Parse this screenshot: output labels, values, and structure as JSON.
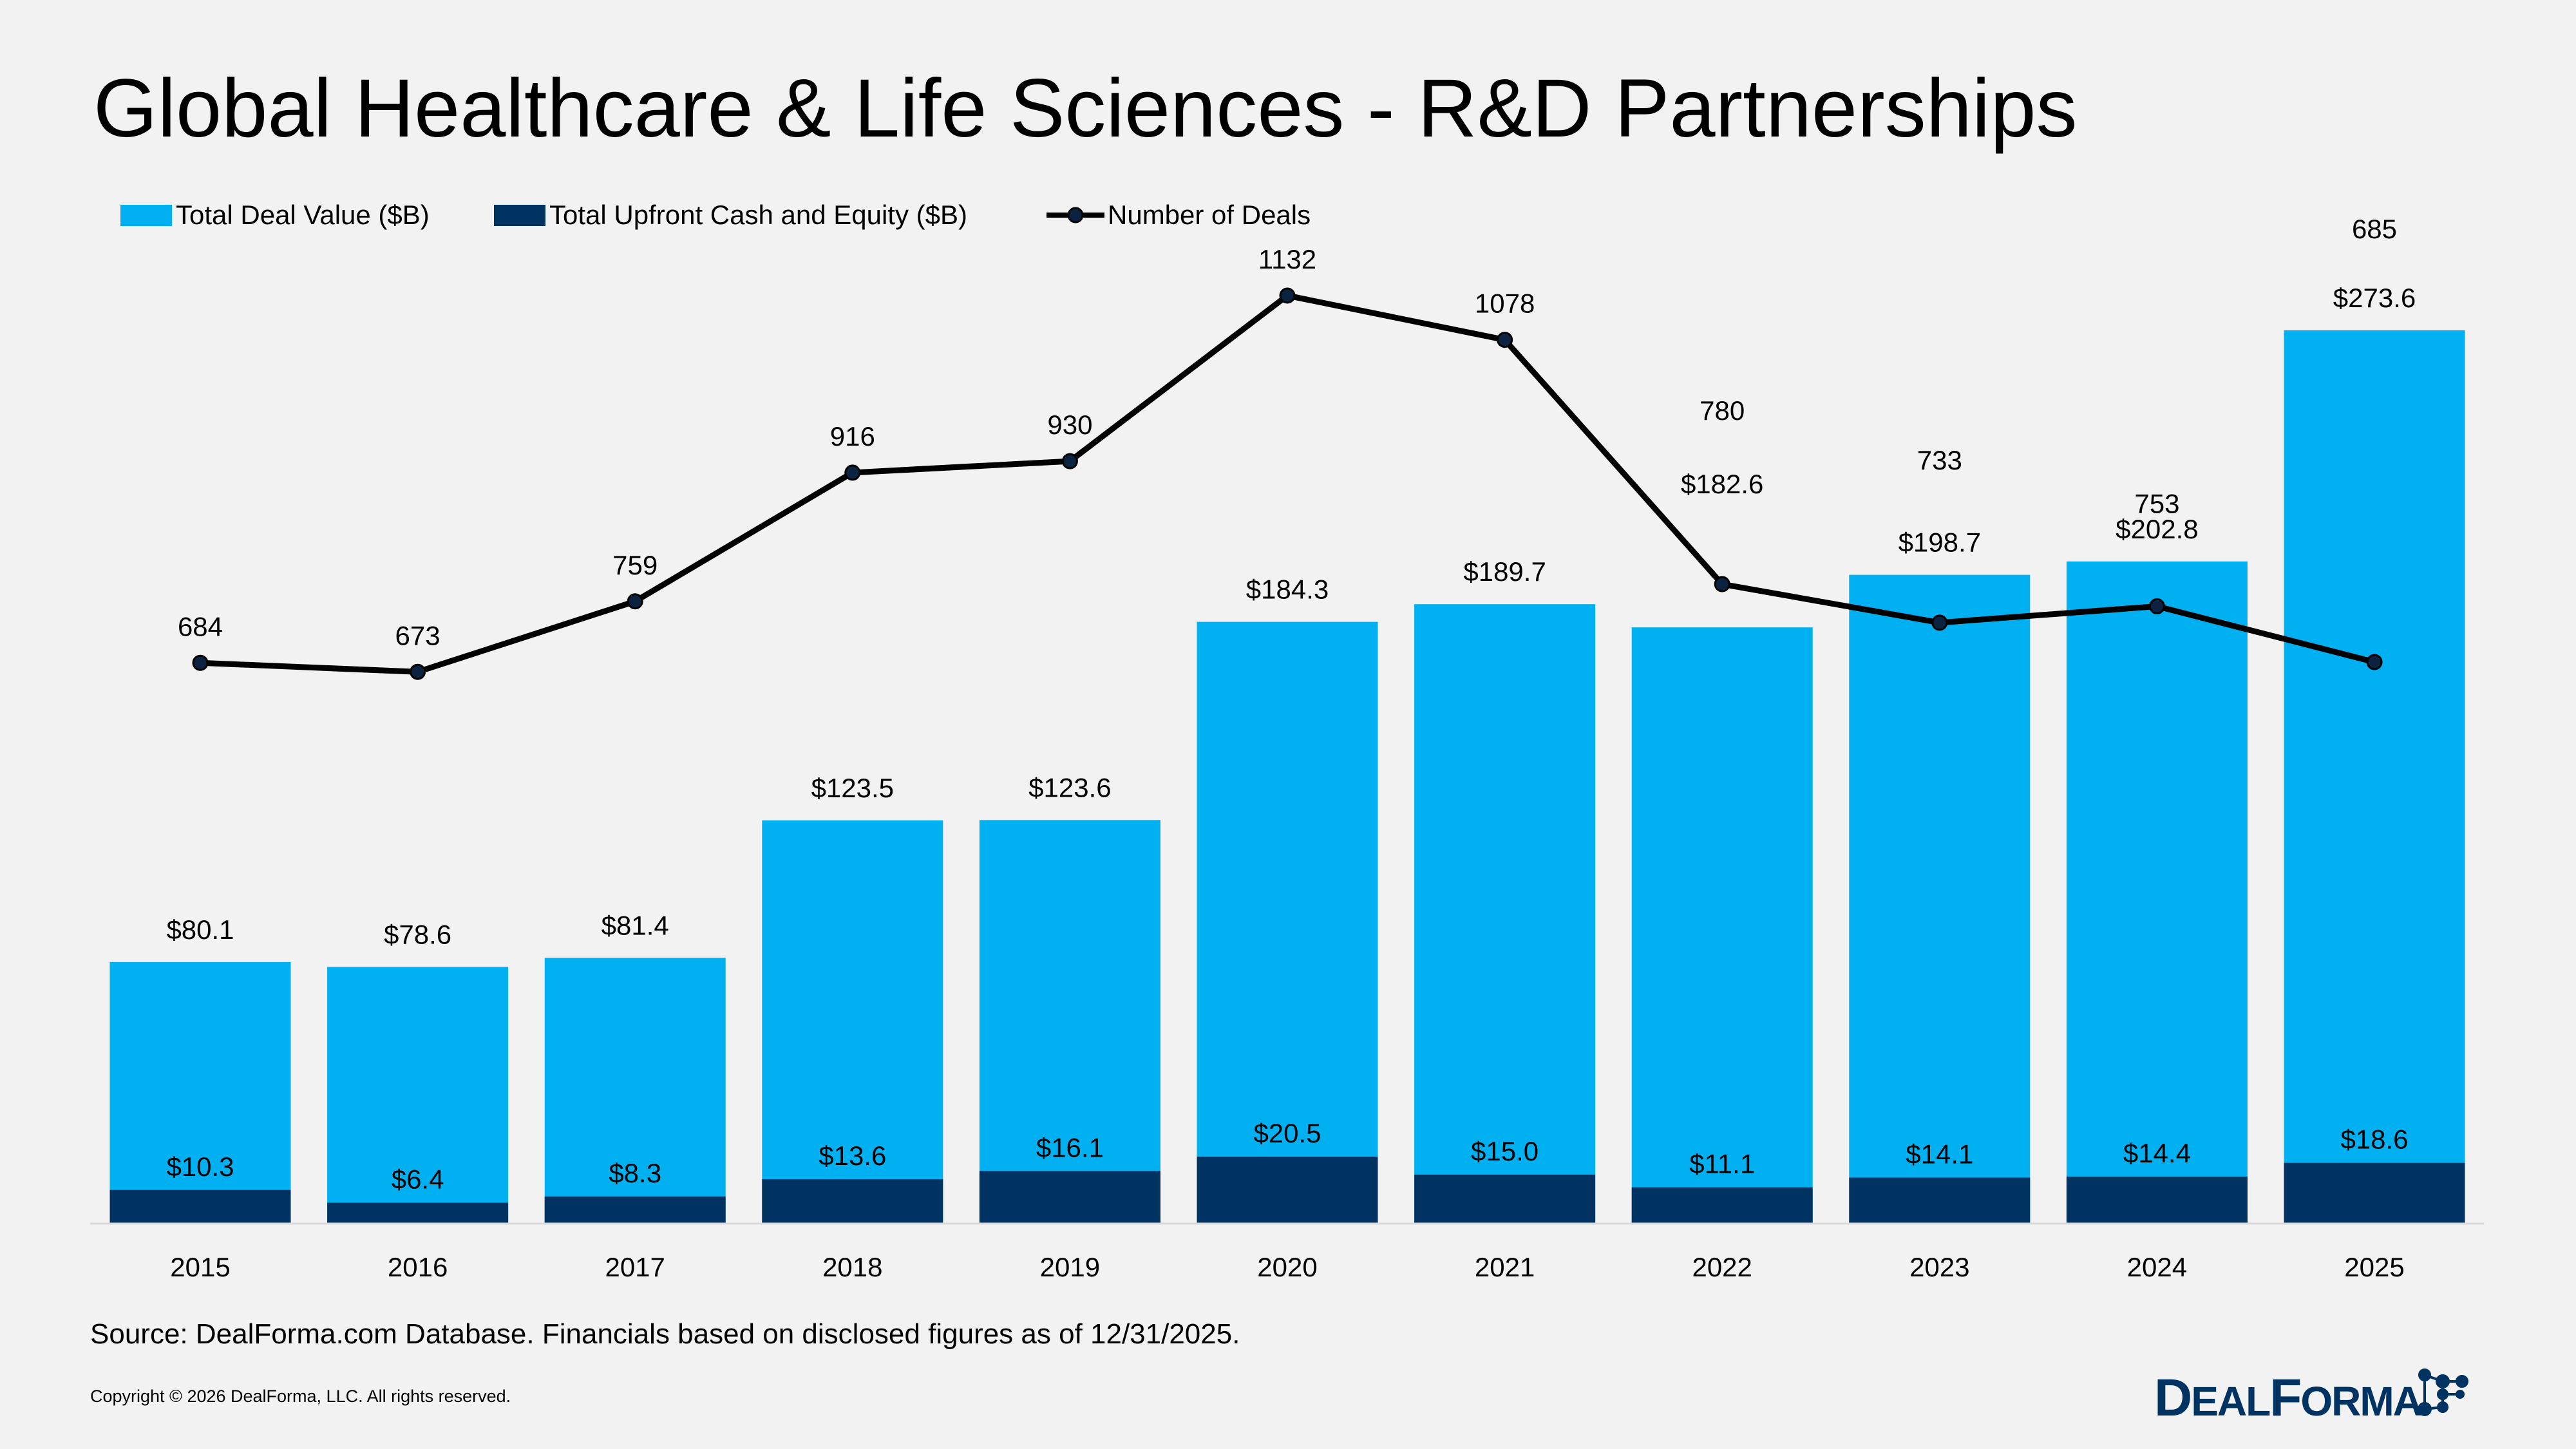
{
  "chart_data": {
    "type": "bar",
    "title": "Global Healthcare & Life Sciences - R&D Partnerships",
    "categories": [
      "2015",
      "2016",
      "2017",
      "2018",
      "2019",
      "2020",
      "2021",
      "2022",
      "2023",
      "2024",
      "2025"
    ],
    "series": [
      {
        "name": "Total Deal Value ($B)",
        "kind": "bar",
        "color": "#00b0f0",
        "values": [
          80.1,
          78.6,
          81.4,
          123.5,
          123.6,
          184.3,
          189.7,
          182.6,
          198.7,
          202.8,
          273.6
        ],
        "labels": [
          "$80.1",
          "$78.6",
          "$81.4",
          "$123.5",
          "$123.6",
          "$184.3",
          "$189.7",
          "$182.6",
          "$198.7",
          "$202.8",
          "$273.6"
        ]
      },
      {
        "name": "Total Upfront Cash and Equity ($B)",
        "kind": "bar-overlay",
        "color": "#003262",
        "values": [
          10.3,
          6.4,
          8.3,
          13.6,
          16.1,
          20.5,
          15.0,
          11.1,
          14.1,
          14.4,
          18.6
        ],
        "labels": [
          "$10.3",
          "$6.4",
          "$8.3",
          "$13.6",
          "$16.1",
          "$20.5",
          "$15.0",
          "$11.1",
          "$14.1",
          "$14.4",
          "$18.6"
        ]
      },
      {
        "name": "Number of Deals",
        "kind": "line",
        "color": "#000000",
        "marker_color": "#0b2340",
        "values": [
          684,
          673,
          759,
          916,
          930,
          1132,
          1078,
          780,
          733,
          753,
          685
        ],
        "labels": [
          "684",
          "673",
          "759",
          "916",
          "930",
          "1132",
          "1078",
          "780",
          "733",
          "753",
          "685"
        ]
      }
    ],
    "legend_placement": "top-left",
    "grid": false,
    "y_axis_visible": false
  },
  "footer": {
    "source": "Source: DealForma.com Database. Financials based on disclosed figures as of 12/31/2025.",
    "copyright": "Copyright © 2026 DealForma, LLC. All rights reserved.",
    "logo_text": "DealForma"
  },
  "colors": {
    "background": "#f2f2f2",
    "brand": "#003262"
  }
}
